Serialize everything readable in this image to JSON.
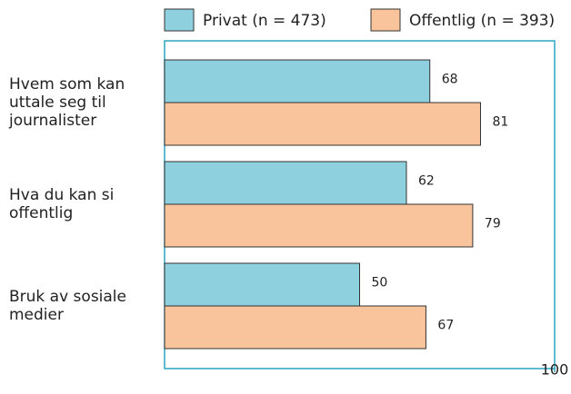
{
  "chart_data": {
    "type": "hbar",
    "categories": [
      "Hvem som kan uttale seg til journalister",
      "Hva du kan si offentlig",
      "Bruk av sosiale medier"
    ],
    "series": [
      {
        "name": "Privat (n = 473)",
        "color": "#8fd0de",
        "values": [
          68,
          62,
          50
        ]
      },
      {
        "name": "Offentlig (n = 393)",
        "color": "#f9c49b",
        "values": [
          81,
          79,
          67
        ]
      }
    ],
    "xlim": [
      0,
      100
    ],
    "xticks": [
      100
    ],
    "frame_color": "#2aa6c0"
  }
}
